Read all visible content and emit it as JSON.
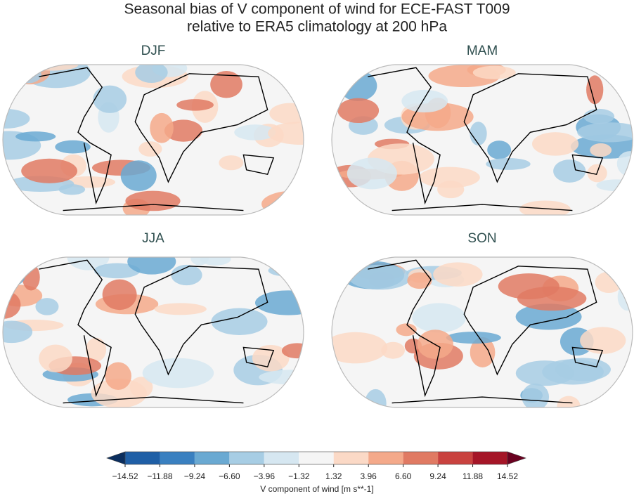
{
  "title": [
    "Seasonal bias of V component of wind for ECE-FAST T009",
    "relative to ERA5 climatology at 200 hPa"
  ],
  "panels": [
    {
      "title": "DJF"
    },
    {
      "title": "MAM"
    },
    {
      "title": "JJA"
    },
    {
      "title": "SON"
    }
  ],
  "colorbar": {
    "ticks": [
      {
        "value": -14.52,
        "label": "−14.52"
      },
      {
        "value": -11.88,
        "label": "−11.88"
      },
      {
        "value": -9.24,
        "label": "−9.24"
      },
      {
        "value": -6.6,
        "label": "−6.60"
      },
      {
        "value": -3.96,
        "label": "−3.96"
      },
      {
        "value": -1.32,
        "label": "−1.32"
      },
      1.32,
      3.96,
      {
        "value": 6.6,
        "label": "6.60"
      },
      9.24,
      11.88,
      14.52
    ],
    "colors": [
      "#1f5fa6",
      "#3a80c0",
      "#6aa9d2",
      "#a7cde4",
      "#d6e7f1",
      "#f5f5f5",
      "#fbd9c6",
      "#f4a98a",
      "#e07a63",
      "#c9423f",
      "#a51527"
    ],
    "under": "#0b2e5e",
    "over": "#6a0120",
    "label": "V component of wind [m s**-1]"
  }
}
